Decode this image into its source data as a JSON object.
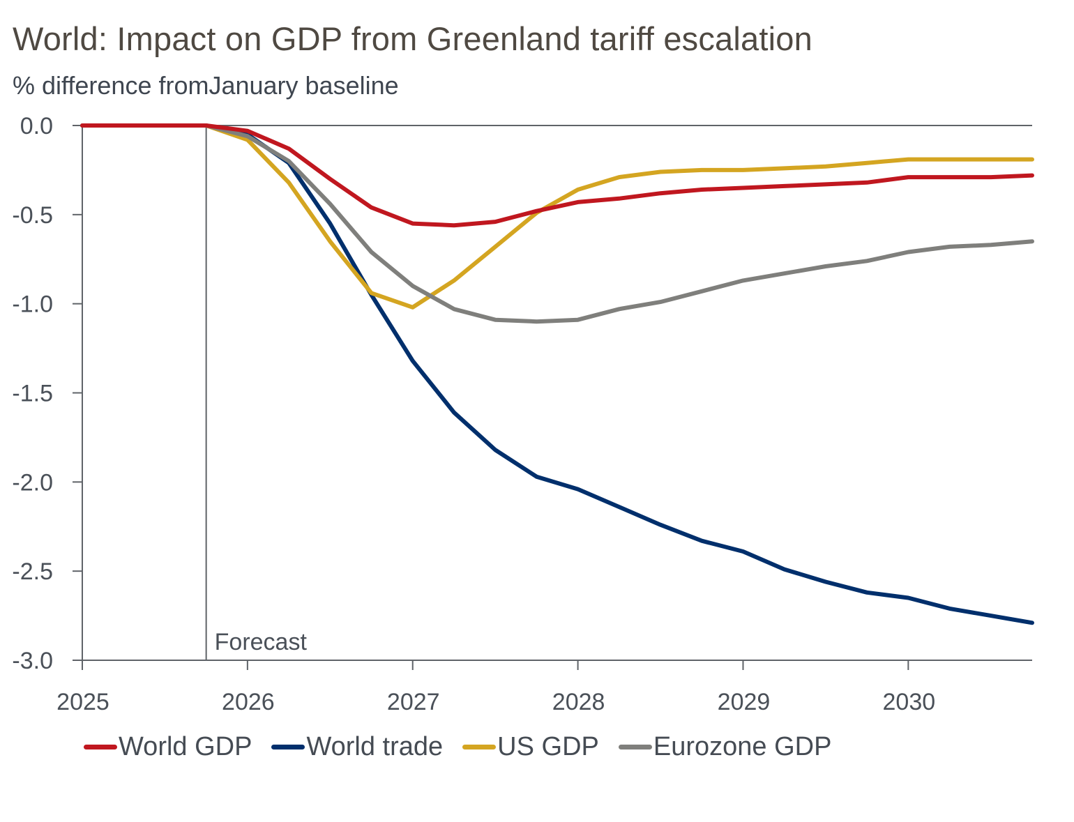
{
  "chart_data": {
    "type": "line",
    "title": "World: Impact on GDP from Greenland tariff escalation",
    "subtitle": "% difference fromJanuary baseline",
    "xlabel": "",
    "ylabel": "",
    "ylim": [
      -3.0,
      0.0
    ],
    "yticks": [
      0.0,
      -0.5,
      -1.0,
      -1.5,
      -2.0,
      -2.5,
      -3.0
    ],
    "ytick_labels": [
      "0.0",
      "-0.5",
      "-1.0",
      "-1.5",
      "-2.0",
      "-2.5",
      "-3.0"
    ],
    "xlim": [
      2025.0,
      2030.75
    ],
    "xticks": [
      2025,
      2026,
      2027,
      2028,
      2029,
      2030
    ],
    "xtick_labels": [
      "2025",
      "2026",
      "2027",
      "2028",
      "2029",
      "2030"
    ],
    "grid": false,
    "legend_position": "bottom",
    "annotations": [
      {
        "text": "Forecast",
        "x": 2025.75,
        "type": "vertical-line"
      }
    ],
    "x": [
      2025.0,
      2025.25,
      2025.5,
      2025.75,
      2026.0,
      2026.25,
      2026.5,
      2026.75,
      2027.0,
      2027.25,
      2027.5,
      2027.75,
      2028.0,
      2028.25,
      2028.5,
      2028.75,
      2029.0,
      2029.25,
      2029.5,
      2029.75,
      2030.0,
      2030.25,
      2030.5,
      2030.75
    ],
    "series": [
      {
        "name": "World GDP",
        "color": "#c0171f",
        "values": [
          0,
          0,
          0,
          0,
          -0.03,
          -0.13,
          -0.3,
          -0.46,
          -0.55,
          -0.56,
          -0.54,
          -0.48,
          -0.43,
          -0.41,
          -0.38,
          -0.36,
          -0.35,
          -0.34,
          -0.33,
          -0.32,
          -0.29,
          -0.29,
          -0.29,
          -0.28
        ]
      },
      {
        "name": "World trade",
        "color": "#002f6c",
        "values": [
          0,
          0,
          0,
          0,
          -0.05,
          -0.21,
          -0.55,
          -0.95,
          -1.32,
          -1.61,
          -1.82,
          -1.97,
          -2.04,
          -2.14,
          -2.24,
          -2.33,
          -2.39,
          -2.49,
          -2.56,
          -2.62,
          -2.65,
          -2.71,
          -2.75,
          -2.79
        ]
      },
      {
        "name": "US GDP",
        "color": "#d4a521",
        "values": [
          0,
          0,
          0,
          0,
          -0.08,
          -0.32,
          -0.65,
          -0.94,
          -1.02,
          -0.87,
          -0.68,
          -0.49,
          -0.36,
          -0.29,
          -0.26,
          -0.25,
          -0.25,
          -0.24,
          -0.23,
          -0.21,
          -0.19,
          -0.19,
          -0.19,
          -0.19
        ]
      },
      {
        "name": "Eurozone GDP",
        "color": "#7f7f7c",
        "values": [
          0,
          0,
          0,
          0,
          -0.06,
          -0.2,
          -0.44,
          -0.71,
          -0.9,
          -1.03,
          -1.09,
          -1.1,
          -1.09,
          -1.03,
          -0.99,
          -0.93,
          -0.87,
          -0.83,
          -0.79,
          -0.76,
          -0.71,
          -0.68,
          -0.67,
          -0.65
        ]
      }
    ]
  },
  "colors": {
    "axis": "#5f6368",
    "text": "#4a5058",
    "title": "#4f4942"
  }
}
